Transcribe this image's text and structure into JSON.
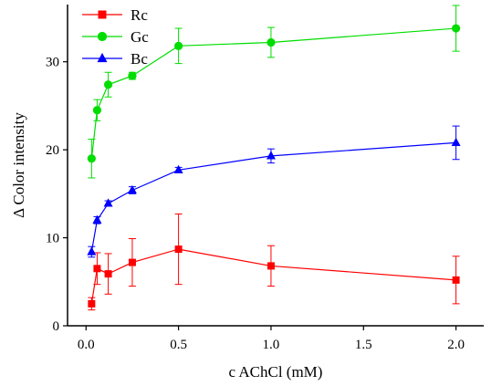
{
  "chart_data": {
    "type": "line",
    "xlabel": "c AChCl (mM)",
    "ylabel": "Δ Color intensity",
    "xlim": [
      -0.1,
      2.15
    ],
    "ylim": [
      0,
      36.5
    ],
    "xticks": [
      0.0,
      0.5,
      1.0,
      1.5,
      2.0
    ],
    "xtick_labels": [
      "0.0",
      "0.5",
      "1.0",
      "1.5",
      "2.0"
    ],
    "yticks": [
      0,
      10,
      20,
      30
    ],
    "ytick_labels": [
      "0",
      "10",
      "20",
      "30"
    ],
    "x": [
      0.03,
      0.06,
      0.12,
      0.25,
      0.5,
      1.0,
      2.0
    ],
    "legend_position": "top-left",
    "grid": false,
    "series": [
      {
        "name": "Rc",
        "color": "#ff0000",
        "marker": "square",
        "values": [
          2.5,
          6.5,
          5.9,
          7.2,
          8.7,
          6.8,
          5.2
        ],
        "errors": [
          0.7,
          1.8,
          2.3,
          2.7,
          4.0,
          2.3,
          2.7
        ]
      },
      {
        "name": "Gc",
        "color": "#00dd00",
        "marker": "circle",
        "values": [
          19.0,
          24.5,
          27.4,
          28.4,
          31.8,
          32.2,
          33.8
        ],
        "errors": [
          2.2,
          1.2,
          1.4,
          0.4,
          2.0,
          1.7,
          2.6
        ]
      },
      {
        "name": "Bc",
        "color": "#0000ff",
        "marker": "triangle",
        "values": [
          8.4,
          12.0,
          13.9,
          15.4,
          17.7,
          19.3,
          20.8
        ],
        "errors": [
          0.6,
          0.4,
          0.3,
          0.4,
          0.3,
          0.8,
          1.9
        ]
      }
    ]
  }
}
